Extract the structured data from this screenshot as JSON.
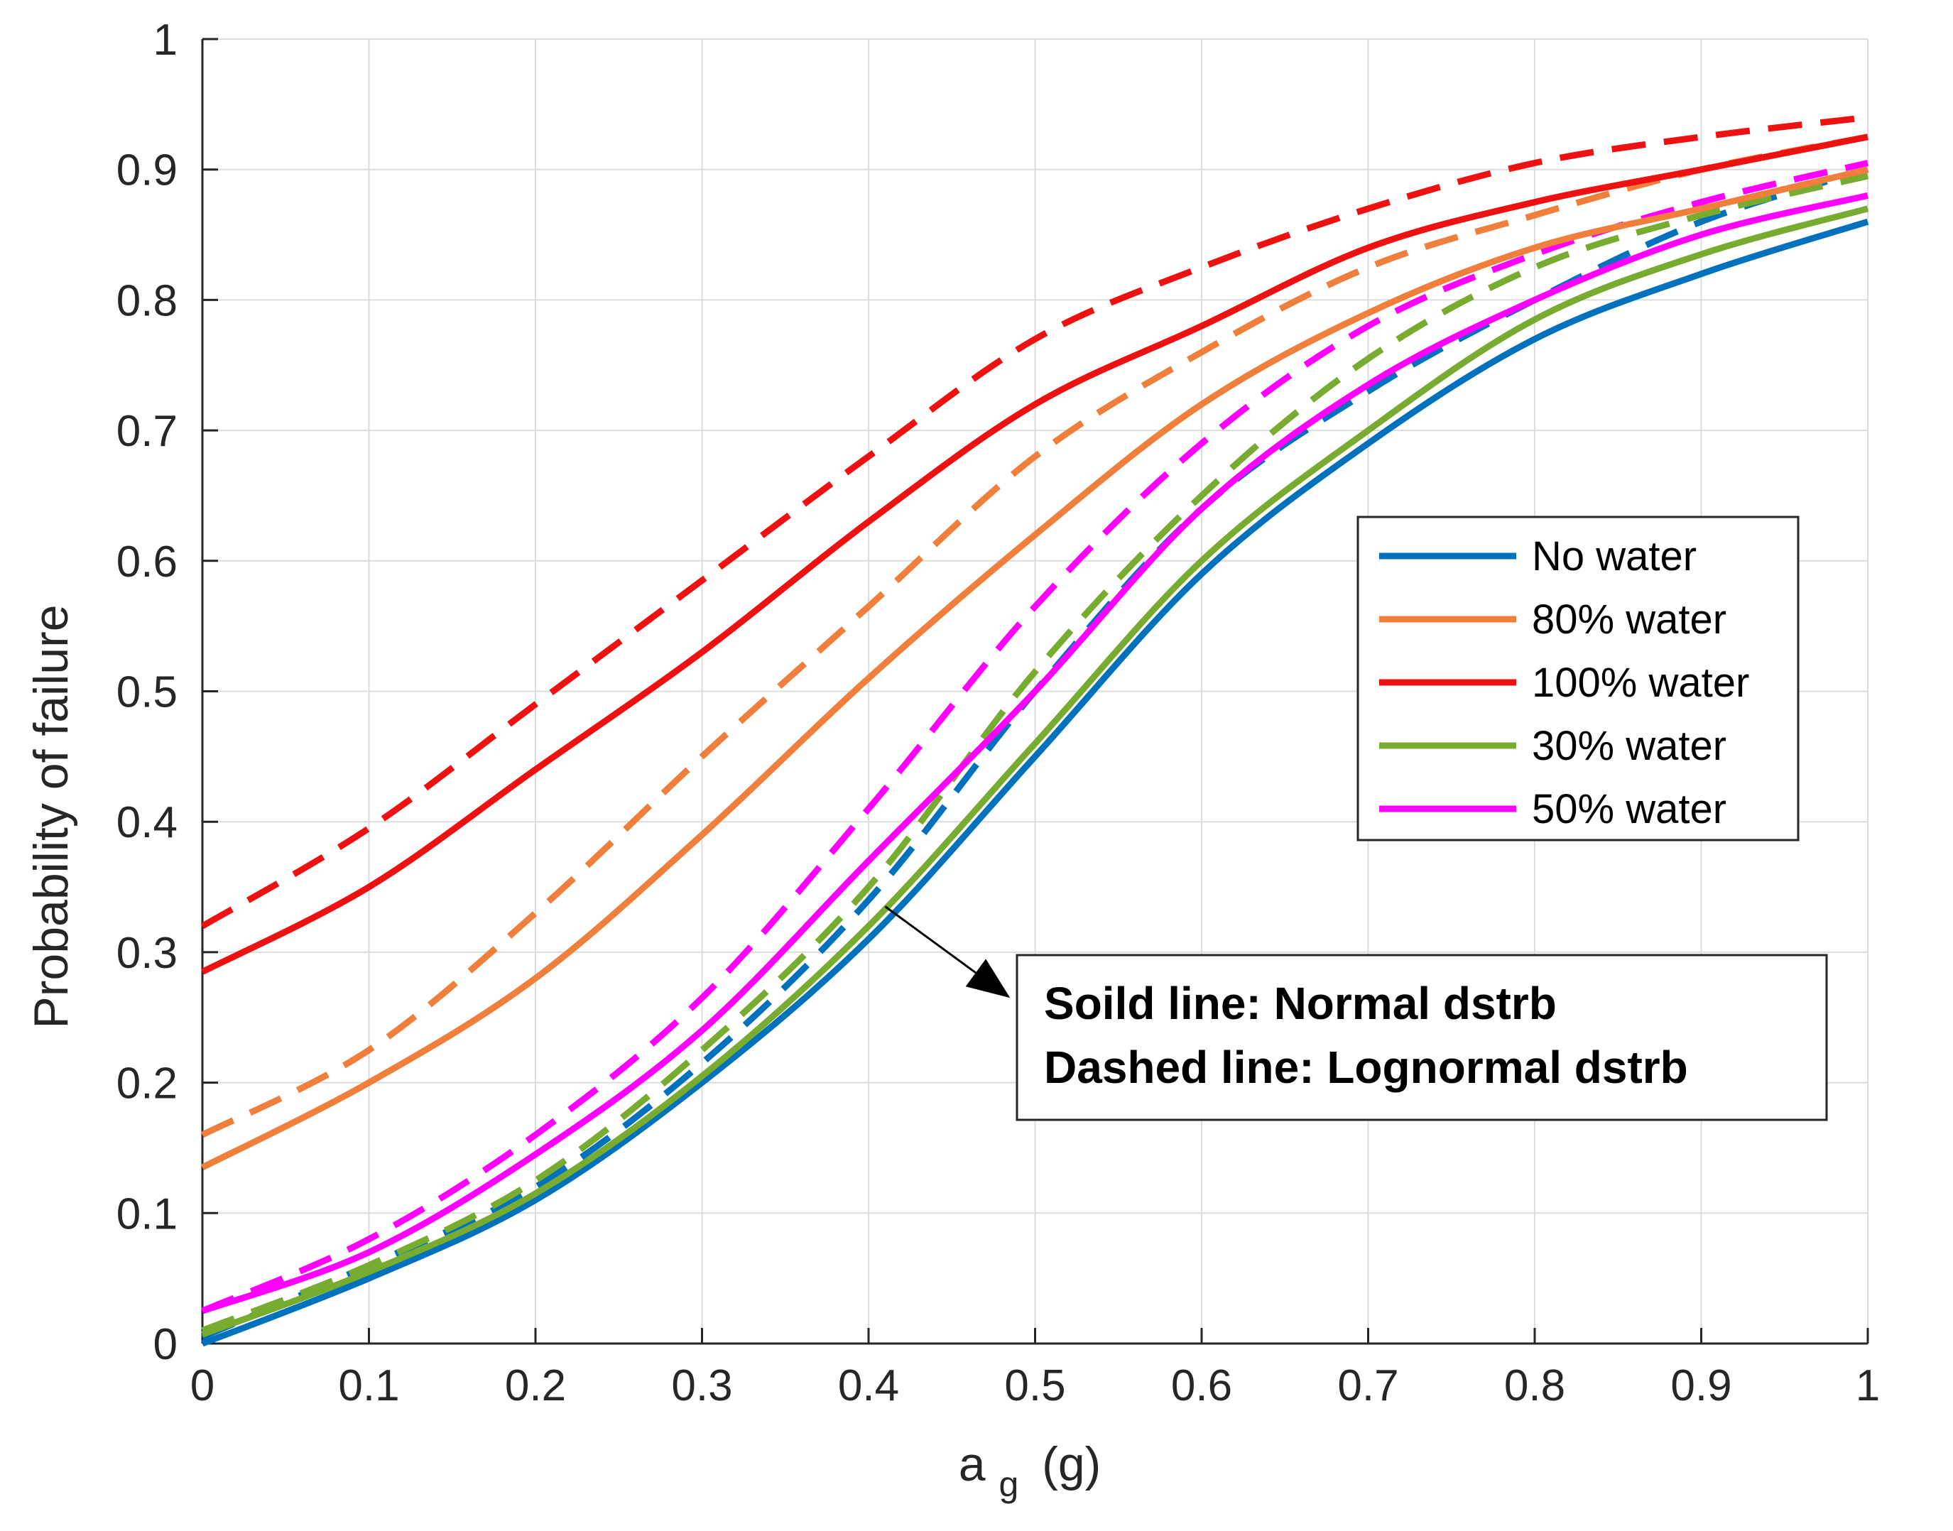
{
  "chart_data": {
    "type": "line",
    "title": "",
    "xlabel_main": "a",
    "xlabel_sub": "g",
    "xlabel_unit": "(g)",
    "ylabel": "Probability of failure",
    "xlim": [
      0,
      1
    ],
    "ylim": [
      0,
      1
    ],
    "grid": true,
    "legend_position": "right",
    "xticks": [
      0,
      0.1,
      0.2,
      0.3,
      0.4,
      0.5,
      0.6,
      0.7,
      0.8,
      0.9,
      1
    ],
    "xtick_labels": [
      "0",
      "0.1",
      "0.2",
      "0.3",
      "0.4",
      "0.5",
      "0.6",
      "0.7",
      "0.8",
      "0.9",
      "1"
    ],
    "yticks": [
      0,
      0.1,
      0.2,
      0.3,
      0.4,
      0.5,
      0.6,
      0.7,
      0.8,
      0.9,
      1
    ],
    "ytick_labels": [
      "0",
      "0.1",
      "0.2",
      "0.3",
      "0.4",
      "0.5",
      "0.6",
      "0.7",
      "0.8",
      "0.9",
      "1"
    ],
    "x": [
      0,
      0.1,
      0.2,
      0.3,
      0.4,
      0.5,
      0.6,
      0.7,
      0.8,
      0.9,
      1
    ],
    "series": [
      {
        "name": "No water",
        "color": "#0072BD",
        "style": "solid",
        "in_legend": true,
        "values": [
          0.0,
          0.05,
          0.11,
          0.2,
          0.31,
          0.45,
          0.59,
          0.69,
          0.77,
          0.82,
          0.86
        ]
      },
      {
        "name": "80% water",
        "color": "#F07F3C",
        "style": "solid",
        "in_legend": true,
        "values": [
          0.135,
          0.2,
          0.28,
          0.39,
          0.51,
          0.62,
          0.72,
          0.79,
          0.84,
          0.87,
          0.9
        ]
      },
      {
        "name": "100% water",
        "color": "#EE1111",
        "style": "solid",
        "in_legend": true,
        "values": [
          0.285,
          0.35,
          0.44,
          0.53,
          0.63,
          0.72,
          0.78,
          0.84,
          0.875,
          0.9,
          0.925
        ]
      },
      {
        "name": "30% water",
        "color": "#77AC30",
        "style": "solid",
        "in_legend": true,
        "values": [
          0.007,
          0.055,
          0.115,
          0.205,
          0.32,
          0.46,
          0.6,
          0.7,
          0.785,
          0.835,
          0.87
        ]
      },
      {
        "name": "50% water",
        "color": "#FF00FF",
        "style": "solid",
        "in_legend": true,
        "values": [
          0.025,
          0.07,
          0.145,
          0.24,
          0.37,
          0.5,
          0.64,
          0.735,
          0.8,
          0.85,
          0.88
        ]
      },
      {
        "name": "No water (lognormal)",
        "color": "#0072BD",
        "style": "dashed",
        "in_legend": false,
        "values": [
          0.005,
          0.06,
          0.12,
          0.215,
          0.34,
          0.5,
          0.64,
          0.73,
          0.8,
          0.86,
          0.9
        ]
      },
      {
        "name": "80% water (lognormal)",
        "color": "#F07F3C",
        "style": "dashed",
        "in_legend": false,
        "values": [
          0.16,
          0.225,
          0.33,
          0.45,
          0.565,
          0.68,
          0.76,
          0.825,
          0.865,
          0.9,
          0.925
        ]
      },
      {
        "name": "100% water (lognormal)",
        "color": "#EE1111",
        "style": "dashed",
        "in_legend": false,
        "values": [
          0.32,
          0.395,
          0.49,
          0.585,
          0.68,
          0.77,
          0.825,
          0.87,
          0.905,
          0.925,
          0.94
        ]
      },
      {
        "name": "30% water (lognormal)",
        "color": "#77AC30",
        "style": "dashed",
        "in_legend": false,
        "values": [
          0.01,
          0.06,
          0.125,
          0.225,
          0.35,
          0.515,
          0.65,
          0.755,
          0.825,
          0.865,
          0.895
        ]
      },
      {
        "name": "50% water (lognormal)",
        "color": "#FF00FF",
        "style": "dashed",
        "in_legend": false,
        "values": [
          0.025,
          0.08,
          0.16,
          0.265,
          0.41,
          0.565,
          0.69,
          0.78,
          0.835,
          0.875,
          0.905
        ]
      }
    ],
    "annotation": {
      "line1": "Soild line: Normal dstrb",
      "line2": "Dashed line: Lognormal dstrb",
      "arrow_tail": [
        0.41,
        0.335
      ],
      "arrow_head": [
        0.485,
        0.265
      ]
    }
  }
}
